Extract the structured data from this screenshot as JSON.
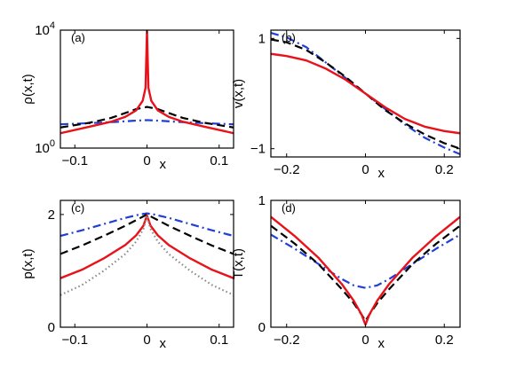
{
  "chart_data": [
    {
      "type": "line",
      "panel_label": "(a)",
      "xlabel": "x",
      "ylabel": "ρ(x,t)",
      "xlim": [
        -0.12,
        0.12
      ],
      "ylim": [
        1,
        10000
      ],
      "yscale": "log",
      "xticks": [
        -0.1,
        0,
        0.1
      ],
      "xticklabels": [
        "−0.1",
        "0",
        "0.1"
      ],
      "yticks": [
        1,
        10000
      ],
      "yticklabels": [
        {
          "base": "10",
          "exp": "0"
        },
        {
          "base": "10",
          "exp": "4"
        }
      ],
      "series": [
        {
          "color": "#1f3fd6",
          "style": "dashdot",
          "x": [
            -0.12,
            -0.08,
            -0.04,
            -0.02,
            0,
            0.02,
            0.04,
            0.08,
            0.12
          ],
          "y": [
            6.4,
            7.0,
            7.8,
            8.4,
            8.9,
            8.4,
            7.8,
            7.0,
            6.4
          ]
        },
        {
          "color": "#000000",
          "style": "dashed",
          "x": [
            -0.12,
            -0.08,
            -0.05,
            -0.03,
            -0.015,
            0,
            0.015,
            0.03,
            0.05,
            0.08,
            0.12
          ],
          "y": [
            5.0,
            7.2,
            10.5,
            15.5,
            21,
            25,
            21,
            15.5,
            10.5,
            7.2,
            5.0
          ]
        },
        {
          "color": "#e8121b",
          "style": "solid",
          "x": [
            -0.12,
            -0.08,
            -0.05,
            -0.03,
            -0.015,
            -0.006,
            -0.002,
            0,
            0.002,
            0.006,
            0.015,
            0.03,
            0.05,
            0.08,
            0.12
          ],
          "y": [
            3.2,
            5.3,
            7.8,
            11.5,
            19,
            40,
            110,
            9500,
            110,
            40,
            19,
            11.5,
            7.8,
            5.3,
            3.2
          ]
        }
      ]
    },
    {
      "type": "line",
      "panel_label": "(b)",
      "xlabel": "x",
      "ylabel": "v(x,t)",
      "xlim": [
        -0.24,
        0.24
      ],
      "ylim": [
        -1.15,
        1.15
      ],
      "xticks": [
        -0.2,
        0,
        0.2
      ],
      "xticklabels": [
        "−0.2",
        "0",
        "0.2"
      ],
      "yticks": [
        -1,
        1
      ],
      "yticklabels": [
        "−1",
        "1"
      ],
      "series": [
        {
          "color": "#1f3fd6",
          "style": "dashdot",
          "x": [
            -0.24,
            -0.2,
            -0.15,
            -0.1,
            -0.05,
            0,
            0.05,
            0.1,
            0.15,
            0.2,
            0.24
          ],
          "y": [
            1.1,
            1.02,
            0.84,
            0.56,
            0.28,
            0,
            -0.28,
            -0.56,
            -0.8,
            -0.98,
            -1.1
          ]
        },
        {
          "color": "#000000",
          "style": "dashed",
          "x": [
            -0.24,
            -0.2,
            -0.15,
            -0.1,
            -0.05,
            0,
            0.05,
            0.1,
            0.15,
            0.2,
            0.24
          ],
          "y": [
            0.98,
            0.93,
            0.79,
            0.56,
            0.3,
            0,
            -0.3,
            -0.54,
            -0.74,
            -0.9,
            -1.0
          ]
        },
        {
          "color": "#e8121b",
          "style": "solid",
          "x": [
            -0.24,
            -0.2,
            -0.15,
            -0.1,
            -0.05,
            0,
            0.05,
            0.1,
            0.15,
            0.2,
            0.24
          ],
          "y": [
            0.72,
            0.68,
            0.6,
            0.45,
            0.25,
            0,
            -0.25,
            -0.46,
            -0.6,
            -0.68,
            -0.72
          ]
        }
      ]
    },
    {
      "type": "line",
      "panel_label": "(c)",
      "xlabel": "x",
      "ylabel": "p(x,t)",
      "xlim": [
        -0.12,
        0.12
      ],
      "ylim": [
        0,
        2.25
      ],
      "xticks": [
        -0.1,
        0,
        0.1
      ],
      "xticklabels": [
        "−0.1",
        "0",
        "0.1"
      ],
      "yticks": [
        0,
        2
      ],
      "yticklabels": [
        "0",
        "2"
      ],
      "series": [
        {
          "color": "#1f3fd6",
          "style": "dashdot",
          "x": [
            -0.12,
            -0.09,
            -0.06,
            -0.03,
            -0.01,
            0,
            0.01,
            0.03,
            0.06,
            0.09,
            0.12
          ],
          "y": [
            1.62,
            1.72,
            1.83,
            1.94,
            2.0,
            2.02,
            2.0,
            1.94,
            1.83,
            1.72,
            1.62
          ]
        },
        {
          "color": "#000000",
          "style": "dashed",
          "x": [
            -0.12,
            -0.09,
            -0.06,
            -0.03,
            -0.015,
            0,
            0.015,
            0.03,
            0.06,
            0.09,
            0.12
          ],
          "y": [
            1.3,
            1.45,
            1.62,
            1.8,
            1.9,
            2.0,
            1.9,
            1.8,
            1.62,
            1.45,
            1.3
          ]
        },
        {
          "color": "#e8121b",
          "style": "solid",
          "x": [
            -0.12,
            -0.09,
            -0.06,
            -0.03,
            -0.015,
            -0.005,
            0,
            0.005,
            0.015,
            0.03,
            0.06,
            0.09,
            0.12
          ],
          "y": [
            0.87,
            1.02,
            1.22,
            1.46,
            1.63,
            1.8,
            1.98,
            1.8,
            1.63,
            1.46,
            1.22,
            1.02,
            0.87
          ]
        },
        {
          "color": "#8a8a8a",
          "style": "dotted",
          "x": [
            -0.12,
            -0.09,
            -0.06,
            -0.03,
            -0.015,
            -0.005,
            0,
            0.005,
            0.015,
            0.03,
            0.06,
            0.09,
            0.12
          ],
          "y": [
            0.57,
            0.75,
            1.0,
            1.3,
            1.52,
            1.74,
            1.98,
            1.74,
            1.52,
            1.3,
            1.0,
            0.75,
            0.57
          ]
        }
      ]
    },
    {
      "type": "line",
      "panel_label": "(d)",
      "xlabel": "x",
      "ylabel": "T(x,t)",
      "xlim": [
        -0.24,
        0.24
      ],
      "ylim": [
        0,
        1
      ],
      "xticks": [
        -0.2,
        0,
        0.2
      ],
      "xticklabels": [
        "−0.2",
        "0",
        "0.2"
      ],
      "yticks": [
        0,
        1
      ],
      "yticklabels": [
        "0",
        "1"
      ],
      "series": [
        {
          "color": "#1f3fd6",
          "style": "dashdot",
          "x": [
            -0.24,
            -0.18,
            -0.12,
            -0.06,
            -0.03,
            0,
            0.03,
            0.06,
            0.12,
            0.18,
            0.24
          ],
          "y": [
            0.73,
            0.62,
            0.5,
            0.38,
            0.33,
            0.31,
            0.33,
            0.38,
            0.5,
            0.62,
            0.73
          ]
        },
        {
          "color": "#000000",
          "style": "dashed",
          "x": [
            -0.24,
            -0.18,
            -0.12,
            -0.06,
            -0.03,
            -0.01,
            0,
            0.01,
            0.03,
            0.06,
            0.12,
            0.18,
            0.24
          ],
          "y": [
            0.8,
            0.66,
            0.5,
            0.3,
            0.19,
            0.1,
            0.05,
            0.1,
            0.19,
            0.3,
            0.5,
            0.66,
            0.8
          ]
        },
        {
          "color": "#e8121b",
          "style": "solid",
          "x": [
            -0.24,
            -0.18,
            -0.12,
            -0.06,
            -0.03,
            -0.01,
            0,
            0.01,
            0.03,
            0.06,
            0.12,
            0.18,
            0.24
          ],
          "y": [
            0.87,
            0.72,
            0.55,
            0.34,
            0.21,
            0.1,
            0.02,
            0.1,
            0.21,
            0.34,
            0.55,
            0.72,
            0.87
          ]
        }
      ]
    }
  ]
}
